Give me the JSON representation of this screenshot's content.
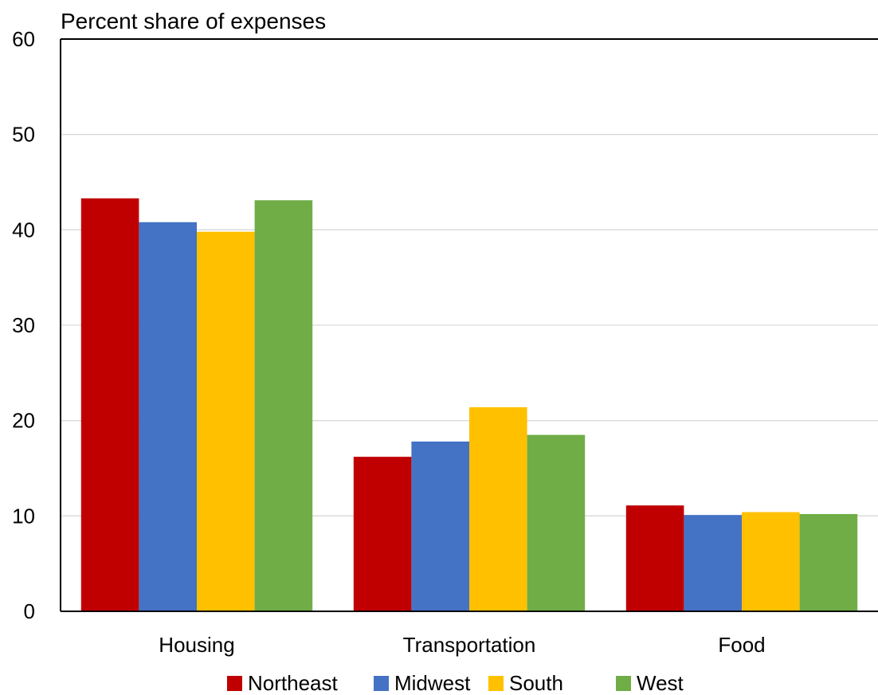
{
  "chart_data": {
    "type": "bar",
    "title": "",
    "ylabel": "Percent share of expenses",
    "xlabel": "",
    "ylim": [
      0,
      60
    ],
    "yticks": [
      "0",
      "10",
      "20",
      "30",
      "40",
      "50",
      "60"
    ],
    "grid": true,
    "legend_position": "bottom",
    "categories": [
      "Housing",
      "Transportation",
      "Food"
    ],
    "series": [
      {
        "name": "Northeast",
        "color": "#C00000",
        "values": [
          43.3,
          16.2,
          11.1
        ]
      },
      {
        "name": "Midwest",
        "color": "#4472C4",
        "values": [
          40.8,
          17.8,
          10.1
        ]
      },
      {
        "name": "South",
        "color": "#FFC000",
        "values": [
          39.8,
          21.4,
          10.4
        ]
      },
      {
        "name": "West",
        "color": "#70AD47",
        "values": [
          43.1,
          18.5,
          10.2
        ]
      }
    ]
  }
}
